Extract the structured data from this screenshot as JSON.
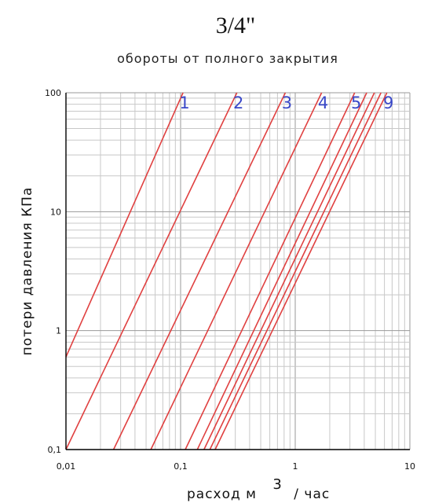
{
  "chart_data": {
    "type": "line",
    "title": "3/4\"",
    "subtitle": "обороты от полного закрытия",
    "xlabel_main": "расход  м",
    "xlabel_sup": "3",
    "xlabel_tail": "/ час",
    "ylabel": "потери давления  КПа",
    "x_scale": "log",
    "y_scale": "log",
    "xlim": [
      0.01,
      10
    ],
    "ylim": [
      0.1,
      100
    ],
    "x_ticks": [
      "0,01",
      "0,1",
      "1",
      "10"
    ],
    "y_ticks": [
      "0,1",
      "1",
      "10",
      "100"
    ],
    "grid": true,
    "series": [
      {
        "name": "1",
        "x": [
          0.01,
          0.105
        ],
        "y": [
          0.6,
          100
        ]
      },
      {
        "name": "2",
        "x": [
          0.01,
          0.31
        ],
        "y": [
          0.1,
          100
        ]
      },
      {
        "name": "3",
        "x": [
          0.026,
          0.82
        ],
        "y": [
          0.1,
          100
        ]
      },
      {
        "name": "4",
        "x": [
          0.055,
          1.7
        ],
        "y": [
          0.1,
          100
        ]
      },
      {
        "name": "5",
        "x": [
          0.11,
          3.3
        ],
        "y": [
          0.1,
          100
        ]
      },
      {
        "name": "",
        "x": [
          0.14,
          4.2
        ],
        "y": [
          0.1,
          100
        ]
      },
      {
        "name": "",
        "x": [
          0.16,
          4.9
        ],
        "y": [
          0.1,
          100
        ]
      },
      {
        "name": "",
        "x": [
          0.18,
          5.6
        ],
        "y": [
          0.1,
          100
        ]
      },
      {
        "name": "9",
        "x": [
          0.2,
          6.3
        ],
        "y": [
          0.1,
          100
        ]
      }
    ]
  }
}
